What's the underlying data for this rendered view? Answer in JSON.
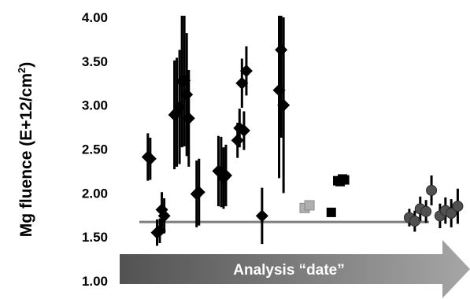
{
  "chart_data": {
    "type": "scatter",
    "title": "",
    "xlabel": "",
    "ylabel": "Mg fluence (E+12/cm²)",
    "ylabel_main": "Mg fluence (E+12/cm",
    "ylabel_sup": "2",
    "ylabel_end": ")",
    "ylim": [
      1.0,
      4.0
    ],
    "yticks": [
      "1.00",
      "1.50",
      "2.00",
      "2.50",
      "3.00",
      "3.50",
      "4.00"
    ],
    "ytick_values": [
      1.0,
      1.5,
      2.0,
      2.5,
      3.0,
      3.5,
      4.0
    ],
    "xlim": [
      0,
      100
    ],
    "grid": false,
    "annotation": "Analysis “date”",
    "reference_line": {
      "y": 1.67,
      "x_start": 3,
      "x_end": 88
    },
    "colors": {
      "diamond": "#000000",
      "light_square": "#b0b0b0",
      "black_square": "#000000",
      "circle": "#505050",
      "reference_line": "#7f7f7f",
      "arrow_dark": "#525252",
      "arrow_light": "#a6a6a6"
    },
    "series": [
      {
        "marker": "diamond",
        "points": [
          {
            "x": 5.5,
            "y": 2.41,
            "err": 0.27
          },
          {
            "x": 6.2,
            "y": 2.39,
            "err": 0.24
          },
          {
            "x": 8.2,
            "y": 1.55,
            "err": 0.15
          },
          {
            "x": 9.0,
            "y": 1.57,
            "err": 0.14
          },
          {
            "x": 9.6,
            "y": 1.81,
            "err": 0.2
          },
          {
            "x": 10.3,
            "y": 1.74,
            "err": 0.2
          },
          {
            "x": 13.3,
            "y": 2.89,
            "err": 0.62
          },
          {
            "x": 14.0,
            "y": 2.92,
            "err": 0.62
          },
          {
            "x": 14.8,
            "y": 2.98,
            "err": 0.65
          },
          {
            "x": 15.5,
            "y": 3.27,
            "err": 0.75
          },
          {
            "x": 16.2,
            "y": 3.28,
            "err": 0.75
          },
          {
            "x": 16.9,
            "y": 3.12,
            "err": 0.7
          },
          {
            "x": 17.5,
            "y": 2.85,
            "err": 0.55
          },
          {
            "x": 19.8,
            "y": 1.99,
            "err": 0.38
          },
          {
            "x": 20.5,
            "y": 2.01,
            "err": 0.38
          },
          {
            "x": 26.2,
            "y": 2.25,
            "err": 0.4
          },
          {
            "x": 27.0,
            "y": 2.24,
            "err": 0.4
          },
          {
            "x": 27.7,
            "y": 2.17,
            "err": 0.35
          },
          {
            "x": 28.4,
            "y": 2.2,
            "err": 0.35
          },
          {
            "x": 31.8,
            "y": 2.6,
            "err": 0.2
          },
          {
            "x": 32.4,
            "y": 2.74,
            "err": 0.22
          },
          {
            "x": 33.1,
            "y": 3.25,
            "err": 0.28
          },
          {
            "x": 33.7,
            "y": 2.71,
            "err": 0.22
          },
          {
            "x": 34.4,
            "y": 3.39,
            "err": 0.28
          },
          {
            "x": 39.0,
            "y": 1.74,
            "err": 0.32
          },
          {
            "x": 44.0,
            "y": 3.17,
            "err": 1.0
          },
          {
            "x": 44.6,
            "y": 3.63,
            "err": 1.0
          },
          {
            "x": 45.3,
            "y": 3.0,
            "err": 1.0
          }
        ]
      },
      {
        "marker": "square-light",
        "points": [
          {
            "x": 51.5,
            "y": 1.83,
            "err": 0
          },
          {
            "x": 52.9,
            "y": 1.86,
            "err": 0
          }
        ]
      },
      {
        "marker": "square-dark",
        "points": [
          {
            "x": 59.3,
            "y": 1.78,
            "err": 0
          },
          {
            "x": 61.2,
            "y": 2.14,
            "err": 0
          },
          {
            "x": 61.9,
            "y": 2.13,
            "err": 0
          },
          {
            "x": 62.6,
            "y": 2.16,
            "err": 0
          },
          {
            "x": 63.2,
            "y": 2.15,
            "err": 0
          }
        ]
      },
      {
        "marker": "circle",
        "points": [
          {
            "x": 82.2,
            "y": 1.72,
            "err": 0.1
          },
          {
            "x": 83.8,
            "y": 1.68,
            "err": 0.12
          },
          {
            "x": 85.4,
            "y": 1.82,
            "err": 0.14
          },
          {
            "x": 87.1,
            "y": 1.79,
            "err": 0.13
          },
          {
            "x": 88.7,
            "y": 2.03,
            "err": 0.17
          },
          {
            "x": 91.2,
            "y": 1.74,
            "err": 0.14
          },
          {
            "x": 92.8,
            "y": 1.8,
            "err": 0.15
          },
          {
            "x": 94.5,
            "y": 1.77,
            "err": 0.16
          },
          {
            "x": 96.4,
            "y": 1.85,
            "err": 0.2
          }
        ]
      }
    ]
  }
}
